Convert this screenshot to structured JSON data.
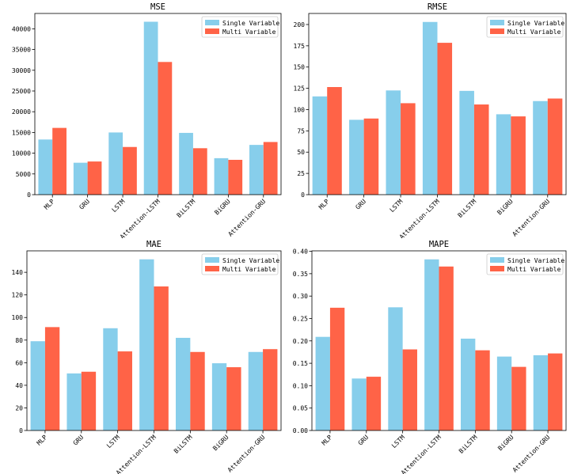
{
  "chart_data": [
    {
      "type": "bar",
      "title": "MSE",
      "categories": [
        "MLP",
        "GRU",
        "LSTM",
        "Attention-LSTM",
        "BiLSTM",
        "BiGRU",
        "Attention-GRU"
      ],
      "series": [
        {
          "name": "Single Variable",
          "values": [
            13300,
            7700,
            15000,
            41700,
            14900,
            8800,
            12000
          ]
        },
        {
          "name": "Multi Variable",
          "values": [
            16100,
            8000,
            11500,
            32000,
            11200,
            8400,
            12700
          ]
        }
      ],
      "ylim": [
        0,
        43700
      ],
      "yticks": [
        0,
        5000,
        10000,
        15000,
        20000,
        25000,
        30000,
        35000,
        40000
      ],
      "ytick_labels": [
        "0",
        "5000",
        "10000",
        "15000",
        "20000",
        "25000",
        "30000",
        "35000",
        "40000"
      ],
      "xlabel": "",
      "ylabel": "",
      "legend": "top-right",
      "grid": false
    },
    {
      "type": "bar",
      "title": "RMSE",
      "categories": [
        "MLP",
        "GRU",
        "LSTM",
        "Attention-LSTM",
        "BiLSTM",
        "BiGRU",
        "Attention-GRU"
      ],
      "series": [
        {
          "name": "Single Variable",
          "values": [
            115.5,
            88,
            122.5,
            203,
            122,
            94.5,
            110
          ]
        },
        {
          "name": "Multi Variable",
          "values": [
            126.5,
            89.5,
            107.5,
            178.5,
            106,
            92,
            113
          ]
        }
      ],
      "ylim": [
        0,
        213
      ],
      "yticks": [
        0,
        25,
        50,
        75,
        100,
        125,
        150,
        175,
        200
      ],
      "ytick_labels": [
        "0",
        "25",
        "50",
        "75",
        "100",
        "125",
        "150",
        "175",
        "200"
      ],
      "xlabel": "",
      "ylabel": "",
      "legend": "top-right",
      "grid": false
    },
    {
      "type": "bar",
      "title": "MAE",
      "categories": [
        "MLP",
        "GRU",
        "LSTM",
        "Attention-LSTM",
        "BiLSTM",
        "BiGRU",
        "Attention-GRU"
      ],
      "series": [
        {
          "name": "Single Variable",
          "values": [
            79,
            50.5,
            90.5,
            151.5,
            82,
            59.5,
            69.5
          ]
        },
        {
          "name": "Multi Variable",
          "values": [
            91.5,
            52,
            70,
            127.5,
            69.5,
            56,
            72
          ]
        }
      ],
      "ylim": [
        0,
        159
      ],
      "yticks": [
        0,
        20,
        40,
        60,
        80,
        100,
        120,
        140
      ],
      "ytick_labels": [
        "0",
        "20",
        "40",
        "60",
        "80",
        "100",
        "120",
        "140"
      ],
      "xlabel": "",
      "ylabel": "",
      "legend": "top-right",
      "grid": false
    },
    {
      "type": "bar",
      "title": "MAPE",
      "categories": [
        "MLP",
        "GRU",
        "LSTM",
        "Attention-LSTM",
        "BiLSTM",
        "BiGRU",
        "Attention-GRU"
      ],
      "series": [
        {
          "name": "Single Variable",
          "values": [
            0.209,
            0.116,
            0.275,
            0.382,
            0.205,
            0.165,
            0.168
          ]
        },
        {
          "name": "Multi Variable",
          "values": [
            0.274,
            0.12,
            0.181,
            0.366,
            0.179,
            0.142,
            0.172
          ]
        }
      ],
      "ylim": [
        0,
        0.401
      ],
      "yticks": [
        0,
        0.05,
        0.1,
        0.15,
        0.2,
        0.25,
        0.3,
        0.35,
        0.4
      ],
      "ytick_labels": [
        "0.00",
        "0.05",
        "0.10",
        "0.15",
        "0.20",
        "0.25",
        "0.30",
        "0.35",
        "0.40"
      ],
      "xlabel": "",
      "ylabel": "",
      "legend": "top-right",
      "grid": false
    }
  ],
  "colors": {
    "single": "#87CEEB",
    "multi": "#FF6347",
    "axes": "#000000",
    "background": "#ffffff"
  }
}
